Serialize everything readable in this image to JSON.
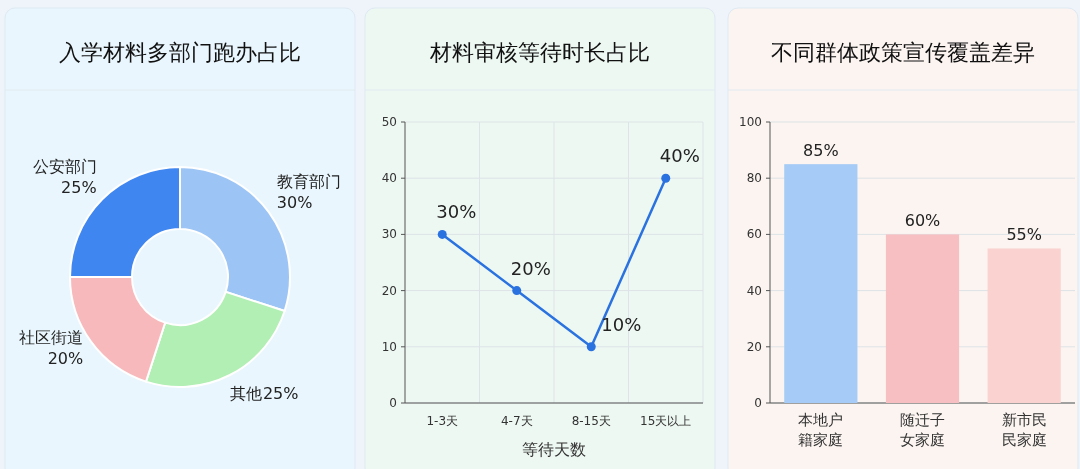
{
  "chart_data": [
    {
      "type": "donut",
      "title": "入学材料多部门跑办占比",
      "categories": [
        "教育部门",
        "其他",
        "社区街道",
        "公安部门"
      ],
      "values": [
        30,
        25,
        20,
        25
      ],
      "value_labels": [
        "30%",
        "25%",
        "20%",
        "25%"
      ],
      "colors": [
        "#9cc5f5",
        "#b2efb4",
        "#f7b9bb",
        "#3f86f0"
      ]
    },
    {
      "type": "line",
      "title": "材料审核等待时长占比",
      "xlabel": "等待天数",
      "categories": [
        "1-3天",
        "4-7天",
        "8-15天",
        "15天以上"
      ],
      "series": [
        {
          "color": "#2a72e0",
          "values": [
            30,
            20,
            10,
            40
          ],
          "value_labels": [
            "30%",
            "20%",
            "10%",
            "40%"
          ]
        }
      ],
      "ylim": [
        0,
        50
      ],
      "yticks": [
        0,
        10,
        20,
        30,
        40,
        50
      ],
      "grid": true,
      "marker": "circle",
      "line_style": "solid"
    },
    {
      "type": "bar",
      "title": "不同群体政策宣传覆盖差异",
      "categories": [
        "本地户籍家庭",
        "随迁子女家庭",
        "新市民民家庭"
      ],
      "values": [
        85,
        60,
        55
      ],
      "value_labels": [
        "85%",
        "60%",
        "55%"
      ],
      "colors": [
        "#a6cbf6",
        "#f8bfc2",
        "#fad3d0"
      ],
      "ylim": [
        0,
        100
      ],
      "yticks": [
        0,
        20,
        40,
        60,
        80,
        100
      ],
      "grid": "y"
    }
  ]
}
